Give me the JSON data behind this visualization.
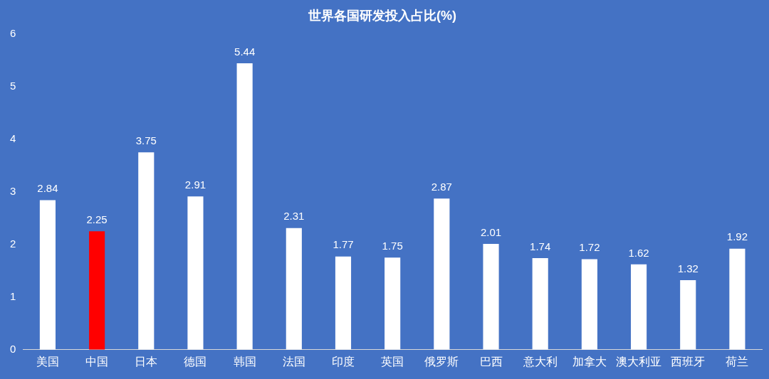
{
  "chart_data": {
    "type": "bar",
    "title": "世界各国研发投入占比(%)",
    "categories": [
      "美国",
      "中国",
      "日本",
      "德国",
      "韩国",
      "法国",
      "印度",
      "英国",
      "俄罗斯",
      "巴西",
      "意大利",
      "加拿大",
      "澳大利亚",
      "西班牙",
      "荷兰"
    ],
    "values": [
      2.84,
      2.25,
      3.75,
      2.91,
      5.44,
      2.31,
      1.77,
      1.75,
      2.87,
      2.01,
      1.74,
      1.72,
      1.62,
      1.32,
      1.92
    ],
    "colors": [
      "#ffffff",
      "#ff0000",
      "#ffffff",
      "#ffffff",
      "#ffffff",
      "#ffffff",
      "#ffffff",
      "#ffffff",
      "#ffffff",
      "#ffffff",
      "#ffffff",
      "#ffffff",
      "#ffffff",
      "#ffffff",
      "#ffffff"
    ],
    "ylim": [
      0,
      6
    ],
    "yticks": [
      0,
      1,
      2,
      3,
      4,
      5,
      6
    ],
    "grid": false,
    "legend": false,
    "data_labels": true
  }
}
